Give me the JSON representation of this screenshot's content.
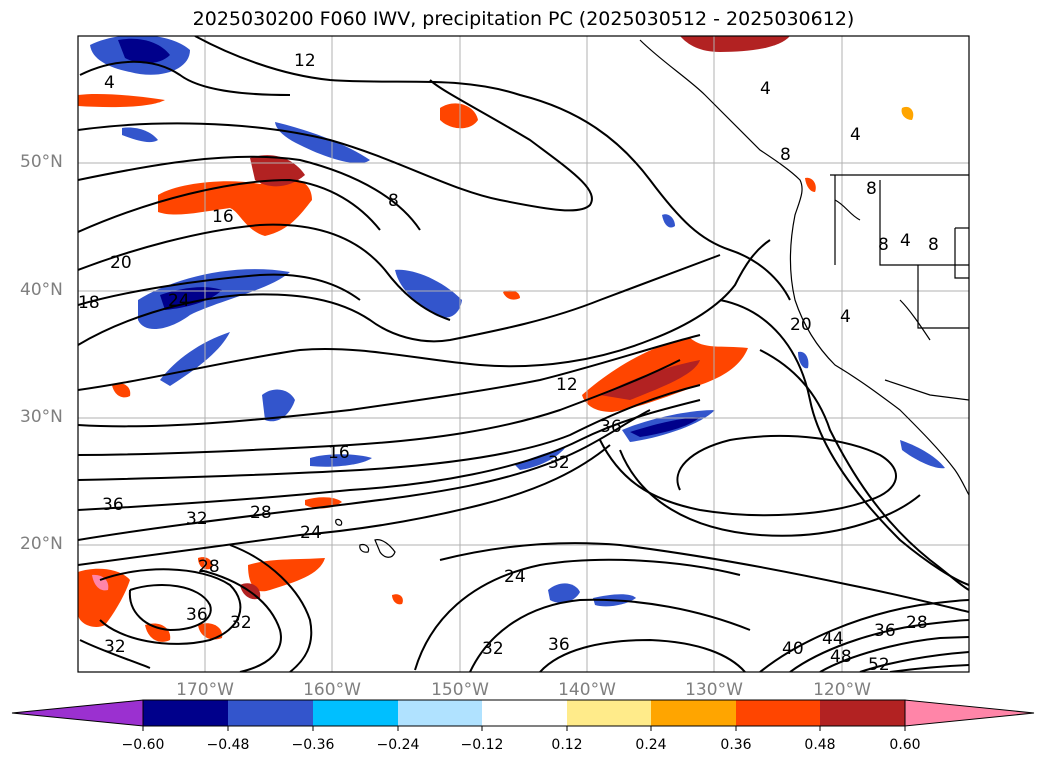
{
  "title": "2025030200 F060 IWV, precipitation PC (2025030512 - 2025030612)",
  "lat_labels": [
    "50°N",
    "40°N",
    "30°N",
    "20°N"
  ],
  "lon_labels": [
    "170°W",
    "160°W",
    "150°W",
    "140°W",
    "130°W",
    "120°W"
  ],
  "contour_labels": [
    "4",
    "12",
    "4",
    "4",
    "8",
    "8",
    "8",
    "4",
    "8",
    "8",
    "16",
    "20",
    "24",
    "18",
    "20",
    "4",
    "12",
    "36",
    "32",
    "16",
    "36",
    "32",
    "28",
    "24",
    "28",
    "24",
    "36",
    "32",
    "32",
    "32",
    "36",
    "40",
    "44",
    "48",
    "52",
    "36",
    "28"
  ],
  "colorbar": {
    "ticks": [
      "−0.60",
      "−0.48",
      "−0.36",
      "−0.24",
      "−0.12",
      "0.12",
      "0.24",
      "0.36",
      "0.48",
      "0.60"
    ],
    "colors": [
      "#9b30d0",
      "#00008b",
      "#3355cc",
      "#00bfff",
      "#b0e2ff",
      "#ffffff",
      "#ffeb8a",
      "#ffa500",
      "#ff4500",
      "#b22222",
      "#ff85a8"
    ]
  }
}
